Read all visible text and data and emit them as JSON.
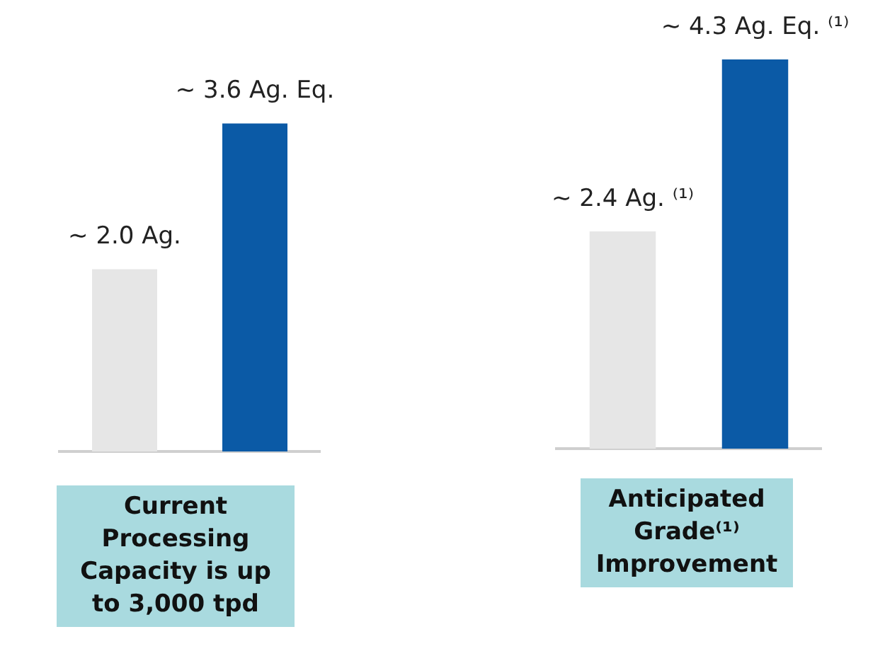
{
  "chart_data": [
    {
      "type": "bar",
      "xlabel": "Current Processing Capacity is up to 3,000 tpd",
      "categories": [
        null,
        null
      ],
      "values": [
        2.0,
        3.6
      ],
      "colors": [
        "#e6e6e6",
        "#0b5aa6"
      ],
      "value_labels": [
        "~ 2.0 Ag.",
        "~ 3.6 Ag. Eq."
      ]
    },
    {
      "type": "bar",
      "xlabel": "Anticipated Grade⁽¹⁾ Improvement",
      "categories": [
        null,
        null
      ],
      "values": [
        2.4,
        4.3
      ],
      "colors": [
        "#e6e6e6",
        "#0b5aa6"
      ],
      "value_labels": [
        "~ 2.4 Ag. ⁽¹⁾",
        "~ 4.3 Ag. Eq. ⁽¹⁾"
      ]
    }
  ]
}
